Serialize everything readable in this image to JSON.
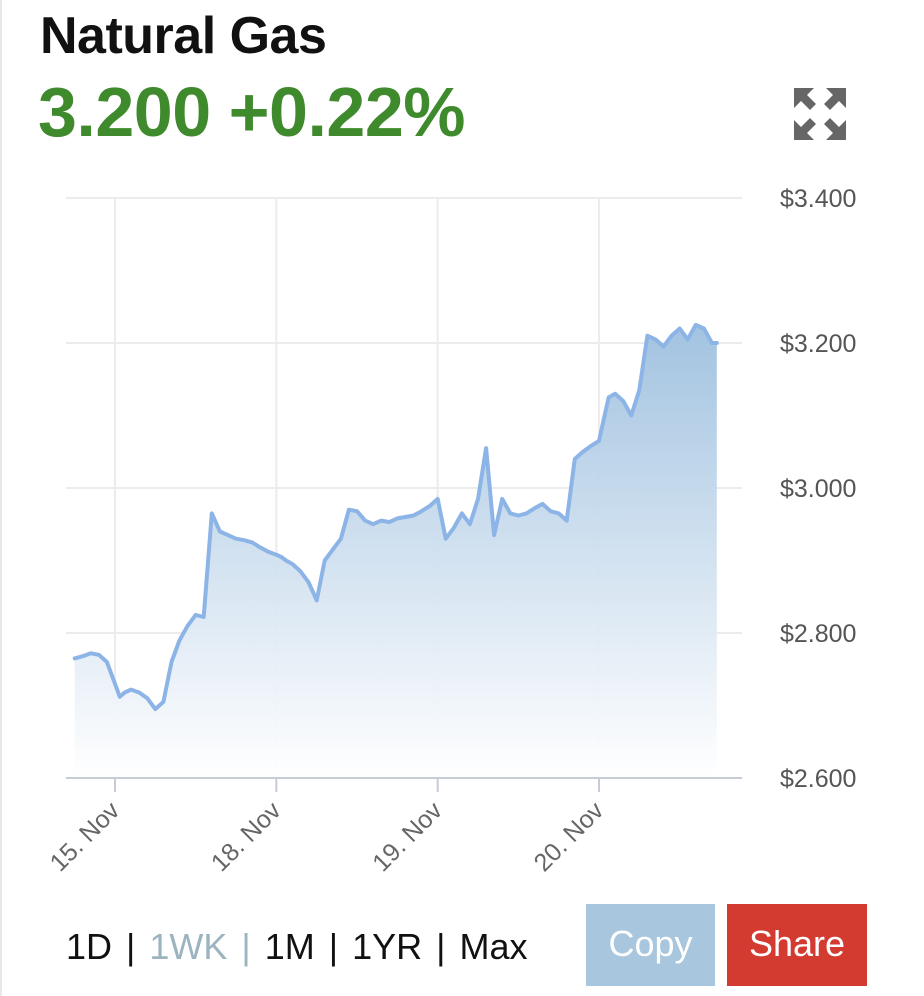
{
  "header": {
    "title": "Natural Gas",
    "price": "3.200",
    "change": "+0.22%"
  },
  "icons": {
    "expand": "expand-arrows-icon"
  },
  "colors": {
    "price_up": "#3e8a2c",
    "line": "#8db4e6",
    "copy_button": "#a8c6dd",
    "share_button": "#d33a30",
    "active_range": "#9bb4bf"
  },
  "ranges": {
    "items": [
      "1D",
      "1WK",
      "1M",
      "1YR",
      "Max"
    ],
    "active": "1WK"
  },
  "buttons": {
    "copy": "Copy",
    "share": "Share"
  },
  "chart_data": {
    "type": "area",
    "title": "",
    "xlabel": "",
    "ylabel": "",
    "ylim": [
      2.6,
      3.4
    ],
    "y_axis_side": "right",
    "y_ticks": [
      "$2.600",
      "$2.800",
      "$3.000",
      "$3.200",
      "$3.400"
    ],
    "y_tick_values": [
      2.6,
      2.8,
      3.0,
      3.2,
      3.4
    ],
    "x_tick_labels": [
      "15. Nov",
      "18. Nov",
      "19. Nov",
      "20. Nov"
    ],
    "x_tick_values": [
      0,
      1,
      2,
      3
    ],
    "xlim": [
      -0.3,
      3.8
    ],
    "grid": true,
    "series": [
      {
        "x": [
          -0.25,
          -0.2,
          -0.15,
          -0.1,
          -0.05,
          0.0,
          0.03,
          0.06,
          0.1,
          0.15,
          0.2,
          0.25,
          0.3,
          0.35,
          0.4,
          0.45,
          0.5,
          0.55,
          0.6,
          0.65,
          0.7,
          0.75,
          0.8,
          0.85,
          0.9,
          0.95,
          1.0,
          1.03,
          1.06,
          1.1,
          1.15,
          1.2,
          1.25,
          1.3,
          1.35,
          1.4,
          1.45,
          1.5,
          1.55,
          1.6,
          1.65,
          1.7,
          1.75,
          1.8,
          1.85,
          1.9,
          1.95,
          2.0,
          2.05,
          2.1,
          2.15,
          2.2,
          2.25,
          2.3,
          2.35,
          2.4,
          2.45,
          2.5,
          2.55,
          2.6,
          2.65,
          2.7,
          2.75,
          2.8,
          2.85,
          2.9,
          2.95,
          3.0,
          3.03,
          3.06,
          3.1,
          3.15,
          3.2,
          3.25,
          3.3,
          3.35,
          3.4,
          3.45,
          3.5,
          3.55,
          3.6,
          3.65,
          3.7,
          3.73
        ],
        "values": [
          2.765,
          2.768,
          2.772,
          2.77,
          2.76,
          2.73,
          2.712,
          2.718,
          2.722,
          2.718,
          2.71,
          2.695,
          2.705,
          2.76,
          2.79,
          2.81,
          2.825,
          2.822,
          2.965,
          2.94,
          2.935,
          2.93,
          2.928,
          2.925,
          2.918,
          2.912,
          2.908,
          2.905,
          2.9,
          2.895,
          2.885,
          2.87,
          2.845,
          2.9,
          2.915,
          2.93,
          2.97,
          2.968,
          2.955,
          2.95,
          2.955,
          2.953,
          2.958,
          2.96,
          2.962,
          2.968,
          2.975,
          2.985,
          2.93,
          2.945,
          2.965,
          2.95,
          2.985,
          3.055,
          2.935,
          2.985,
          2.965,
          2.962,
          2.965,
          2.972,
          2.978,
          2.968,
          2.965,
          2.955,
          3.04,
          3.05,
          3.058,
          3.065,
          3.095,
          3.125,
          3.13,
          3.12,
          3.1,
          3.135,
          3.21,
          3.205,
          3.195,
          3.21,
          3.22,
          3.205,
          3.225,
          3.22,
          3.2,
          3.2
        ]
      }
    ]
  }
}
